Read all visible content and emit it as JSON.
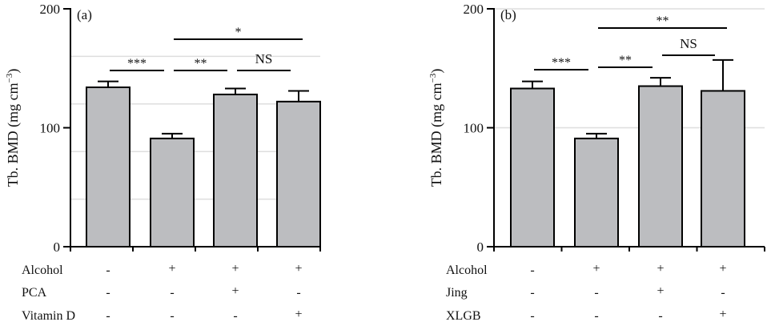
{
  "chart_data": [
    {
      "type": "bar",
      "panel_label": "(a)",
      "ylabel": "Tb. BMD (mg cm",
      "ylabel_sup": "−3",
      "ylabel_close": ")",
      "ylim": [
        0,
        200
      ],
      "yticks": [
        "0",
        "100",
        "200"
      ],
      "grid": true,
      "values": [
        134,
        91,
        128,
        122
      ],
      "errors": [
        5,
        4,
        5,
        9
      ],
      "bar_color": "#bcbdc0",
      "conditions": [
        {
          "label": "Alcohol",
          "signs": [
            "-",
            "+",
            "+",
            "+"
          ]
        },
        {
          "label": "PCA",
          "signs": [
            "-",
            "-",
            "+",
            "-"
          ]
        },
        {
          "label": "Vitamin D",
          "signs": [
            "-",
            "-",
            "-",
            "+"
          ]
        }
      ],
      "significance": [
        {
          "from": 1,
          "to": 2,
          "label": "***"
        },
        {
          "from": 2,
          "to": 3,
          "label": "**"
        },
        {
          "from": 3,
          "to": 4,
          "label": "NS"
        },
        {
          "from": 2,
          "to": 4,
          "label": "*"
        }
      ]
    },
    {
      "type": "bar",
      "panel_label": "(b)",
      "ylabel": "Tb. BMD (mg cm",
      "ylabel_sup": "−3",
      "ylabel_close": ")",
      "ylim": [
        0,
        200
      ],
      "yticks": [
        "0",
        "100",
        "200"
      ],
      "grid": true,
      "values": [
        133,
        91,
        135,
        131
      ],
      "errors": [
        6,
        4,
        7,
        26
      ],
      "bar_color": "#bcbdc0",
      "conditions": [
        {
          "label": "Alcohol",
          "signs": [
            "-",
            "+",
            "+",
            "+"
          ]
        },
        {
          "label": "Jing",
          "signs": [
            "-",
            "-",
            "+",
            "-"
          ]
        },
        {
          "label": "XLGB",
          "signs": [
            "-",
            "-",
            "-",
            "+"
          ]
        }
      ],
      "significance": [
        {
          "from": 1,
          "to": 2,
          "label": "***"
        },
        {
          "from": 2,
          "to": 3,
          "label": "**"
        },
        {
          "from": 3,
          "to": 4,
          "label": "NS"
        },
        {
          "from": 2,
          "to": 4,
          "label": "**"
        }
      ]
    }
  ]
}
